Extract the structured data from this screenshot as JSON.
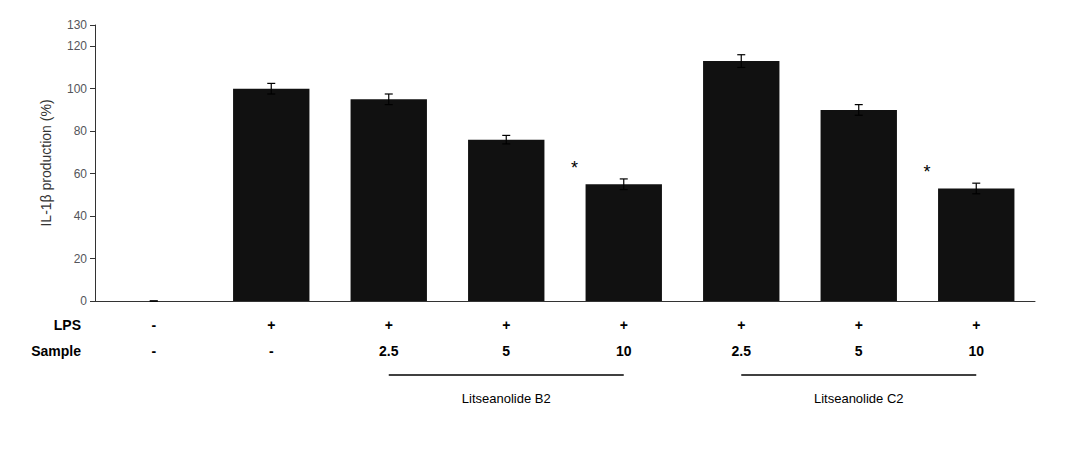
{
  "chart_data": {
    "type": "bar",
    "ylabel": "IL-1β production (%)",
    "values": [
      0,
      100,
      95,
      76,
      55,
      113,
      90,
      53
    ],
    "errors": [
      0,
      2.5,
      2.5,
      2.0,
      2.5,
      3.0,
      2.5,
      2.5
    ],
    "color": "#111111",
    "ylim": [
      0,
      130
    ],
    "yticks": [
      0,
      20,
      40,
      60,
      80,
      100,
      120
    ],
    "grid": false,
    "tick_labels": "y",
    "rows": [
      {
        "label": "LPS",
        "values": [
          "-",
          "+",
          "+",
          "+",
          "+",
          "+",
          "+",
          "+"
        ]
      },
      {
        "label": "Sample",
        "values": [
          "-",
          "-",
          "2.5",
          "5",
          "10",
          "2.5",
          "5",
          "10"
        ]
      }
    ],
    "groups": [
      {
        "label": "Litseanolide B2",
        "first": 2,
        "last": 4
      },
      {
        "label": "Litseanolide C2",
        "first": 5,
        "last": 7
      }
    ],
    "annotations": [
      {
        "text": "*",
        "index": 4
      },
      {
        "text": "*",
        "index": 7
      }
    ]
  }
}
